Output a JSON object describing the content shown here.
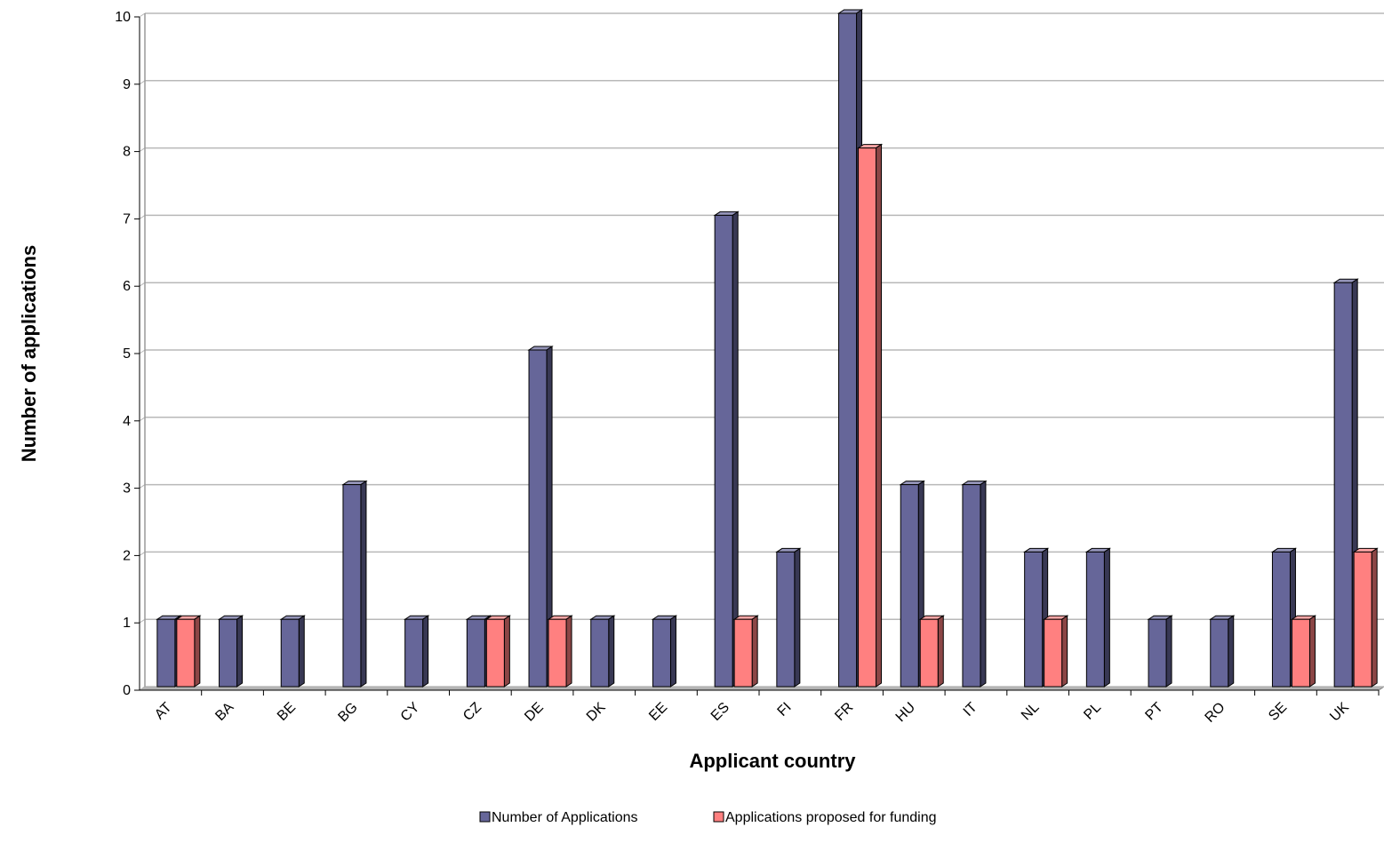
{
  "chart_data": {
    "type": "bar",
    "title": "",
    "xlabel": "Applicant country",
    "ylabel": "Number of applications",
    "categories": [
      "AT",
      "BA",
      "BE",
      "BG",
      "CY",
      "CZ",
      "DE",
      "DK",
      "EE",
      "ES",
      "FI",
      "FR",
      "HU",
      "IT",
      "NL",
      "PL",
      "PT",
      "RO",
      "SE",
      "UK"
    ],
    "series": [
      {
        "name": "Number of Applications",
        "color": "#666699",
        "values": [
          1,
          1,
          1,
          3,
          1,
          1,
          5,
          1,
          1,
          7,
          2,
          10,
          3,
          3,
          2,
          2,
          1,
          1,
          2,
          6
        ]
      },
      {
        "name": "Applications proposed for funding",
        "color": "#FF8080",
        "values": [
          1,
          0,
          0,
          0,
          0,
          1,
          1,
          0,
          0,
          1,
          0,
          8,
          1,
          0,
          1,
          0,
          0,
          0,
          1,
          2
        ]
      }
    ],
    "ylim": [
      0,
      10
    ],
    "yticks": [
      0,
      1,
      2,
      3,
      4,
      5,
      6,
      7,
      8,
      9,
      10
    ],
    "grid": true,
    "legend": "bottom",
    "style": "3d-clustered-column"
  }
}
